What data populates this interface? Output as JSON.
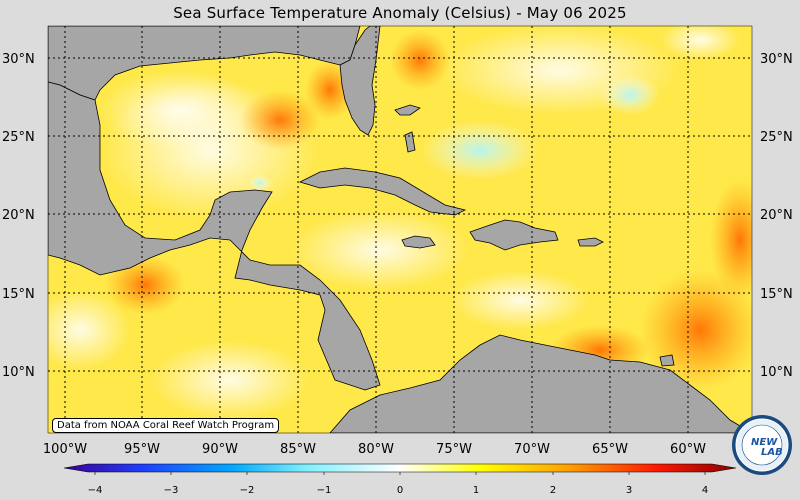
{
  "title": "Sea Surface Temperature Anomaly (Celsius) - May 06 2025",
  "credit": "Data from NOAA Coral Reef Watch Program",
  "logo": {
    "text_top": "NEW",
    "text_bottom": "LAB"
  },
  "map": {
    "lon_range": [
      -102,
      -56
    ],
    "lat_range": [
      6,
      32
    ],
    "lat_ticks": [
      10,
      15,
      20,
      25,
      30
    ],
    "lat_labels": [
      "10°N",
      "15°N",
      "20°N",
      "25°N",
      "30°N"
    ],
    "lon_ticks": [
      -100,
      -95,
      -90,
      -85,
      -80,
      -75,
      -70,
      -65,
      -60
    ],
    "lon_labels": [
      "100°W",
      "95°W",
      "90°W",
      "85°W",
      "80°W",
      "75°W",
      "70°W",
      "65°W",
      "60°W"
    ],
    "land_color": "#a6a6a6",
    "ocean_base_color": "#ffe84a"
  },
  "colorbar": {
    "ticks": [
      -4,
      -3,
      -2,
      -1,
      0,
      1,
      2,
      3,
      4
    ],
    "tick_labels": [
      "−4",
      "−3",
      "−2",
      "−1",
      "0",
      "1",
      "2",
      "3",
      "4"
    ],
    "range": [
      -4.5,
      4.5
    ],
    "colors": [
      "#3b0099",
      "#0050ff",
      "#00c8ff",
      "#ffffff",
      "#ffff00",
      "#ffa000",
      "#ff2000",
      "#8b0000"
    ]
  }
}
